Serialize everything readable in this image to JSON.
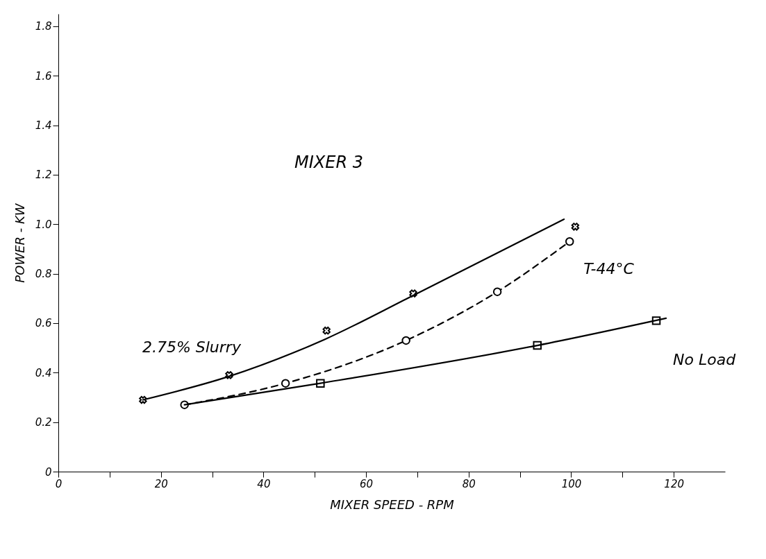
{
  "chart_data": {
    "type": "line",
    "xlabel": "MIXER SPEED - RPM",
    "ylabel": "POWER - KW",
    "xlim": [
      0,
      130
    ],
    "ylim": [
      0,
      1.85
    ],
    "xticks": [
      0,
      {
        "value": 10,
        "label": null
      },
      20,
      {
        "value": 30,
        "label": null
      },
      40,
      {
        "value": 50,
        "label": null
      },
      60,
      {
        "value": 70,
        "label": null
      },
      80,
      {
        "value": 90,
        "label": null
      },
      100,
      {
        "value": 110,
        "label": null
      },
      120
    ],
    "yticks": [
      0,
      0.2,
      0.4,
      0.6,
      0.8,
      {
        "value": 1,
        "label": "1.0"
      },
      1.2,
      1.4,
      1.6,
      1.8
    ],
    "grid": false,
    "series": [
      {
        "type": "scatter",
        "marker": "cross",
        "color": "#000000",
        "x": [
          16.5,
          33.3,
          52.3,
          69.2,
          100.8
        ],
        "values": [
          0.29,
          0.39,
          0.57,
          0.72,
          0.99
        ]
      },
      {
        "name": "2.75% Slurry",
        "marker": "none",
        "line_style": "solid",
        "color": "#000000",
        "x": [
          16.5,
          33.3,
          52,
          69,
          98.6
        ],
        "values": [
          0.29,
          0.385,
          0.535,
          0.71,
          1.02
        ]
      },
      {
        "name": "T-44°C",
        "marker": "circle",
        "line_style": "dashed",
        "color": "#000000",
        "x": [
          24.6,
          44.3,
          67.8,
          85.6,
          99.7
        ],
        "values": [
          0.27,
          0.357,
          0.53,
          0.727,
          0.93
        ]
      },
      {
        "name": "No Load",
        "marker": "none",
        "line_style": "solid",
        "color": "#000000",
        "x": [
          24.6,
          51.1,
          93.4,
          118.5
        ],
        "values": [
          0.27,
          0.357,
          0.51,
          0.62
        ]
      },
      {
        "type": "scatter",
        "marker": "square",
        "color": "#000000",
        "x": [
          51.1,
          93.4,
          116.6
        ],
        "values": [
          0.357,
          0.51,
          0.61
        ]
      }
    ],
    "annotations": [
      "MIXER 3"
    ]
  }
}
